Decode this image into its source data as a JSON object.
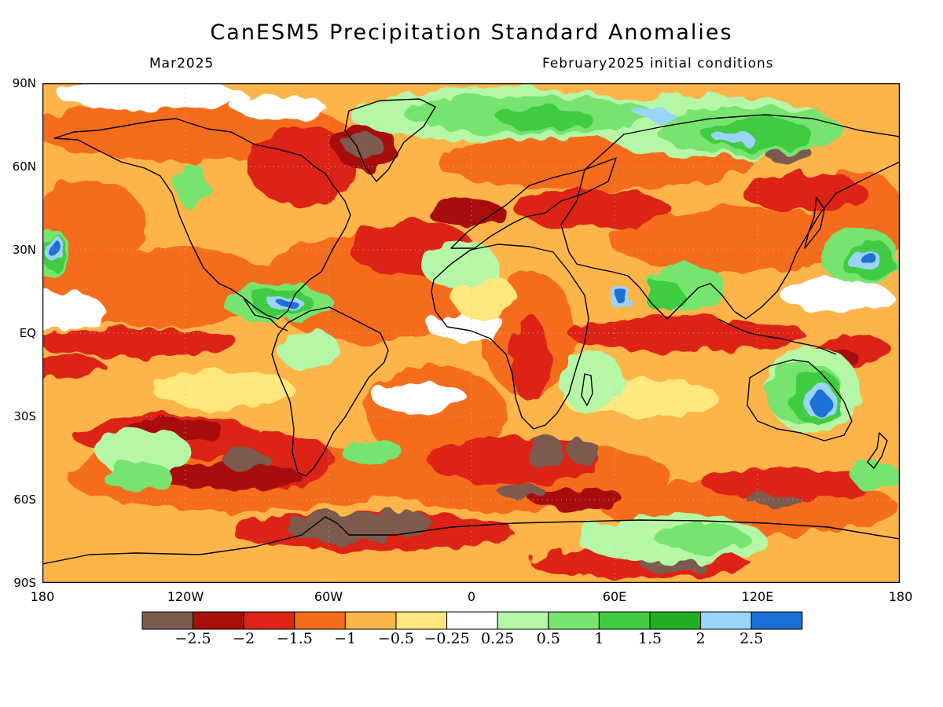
{
  "header": {
    "title": "CanESM5 Precipitation Standard Anomalies",
    "valid_month": "Mar2025",
    "init": "February2025 initial conditions"
  },
  "axes": {
    "lat_ticks": [
      "90N",
      "60N",
      "30N",
      "EQ",
      "30S",
      "60S",
      "90S"
    ],
    "lon_ticks": [
      "180",
      "120W",
      "60W",
      "0",
      "60E",
      "120E",
      "180"
    ]
  },
  "colorbar": {
    "labels": [
      "−2.5",
      "−2",
      "−1.5",
      "−1",
      "−0.5",
      "−0.25",
      "0.25",
      "0.5",
      "1",
      "1.5",
      "2",
      "2.5"
    ],
    "colors": [
      "#7b5a4e",
      "#a8100c",
      "#dd2415",
      "#f56d1b",
      "#fdb54a",
      "#fee77c",
      "#ffffff",
      "#b5f7a6",
      "#76e46e",
      "#3fcc42",
      "#20ad24",
      "#9ad4f9",
      "#1c6fd6"
    ]
  },
  "map_colors": {
    "ocean_base": "#fdb54a",
    "dry1": "#f56d1b",
    "dry2": "#dd2415",
    "dry3": "#a8100c",
    "dry4": "#7b5a4e",
    "neutral": "#ffffff",
    "light_dry": "#fee77c",
    "wet1": "#b5f7a6",
    "wet2": "#76e46e",
    "wet3": "#3fcc42",
    "wet4": "#20ad24",
    "wet5": "#9ad4f9",
    "wet6": "#1c6fd6"
  }
}
